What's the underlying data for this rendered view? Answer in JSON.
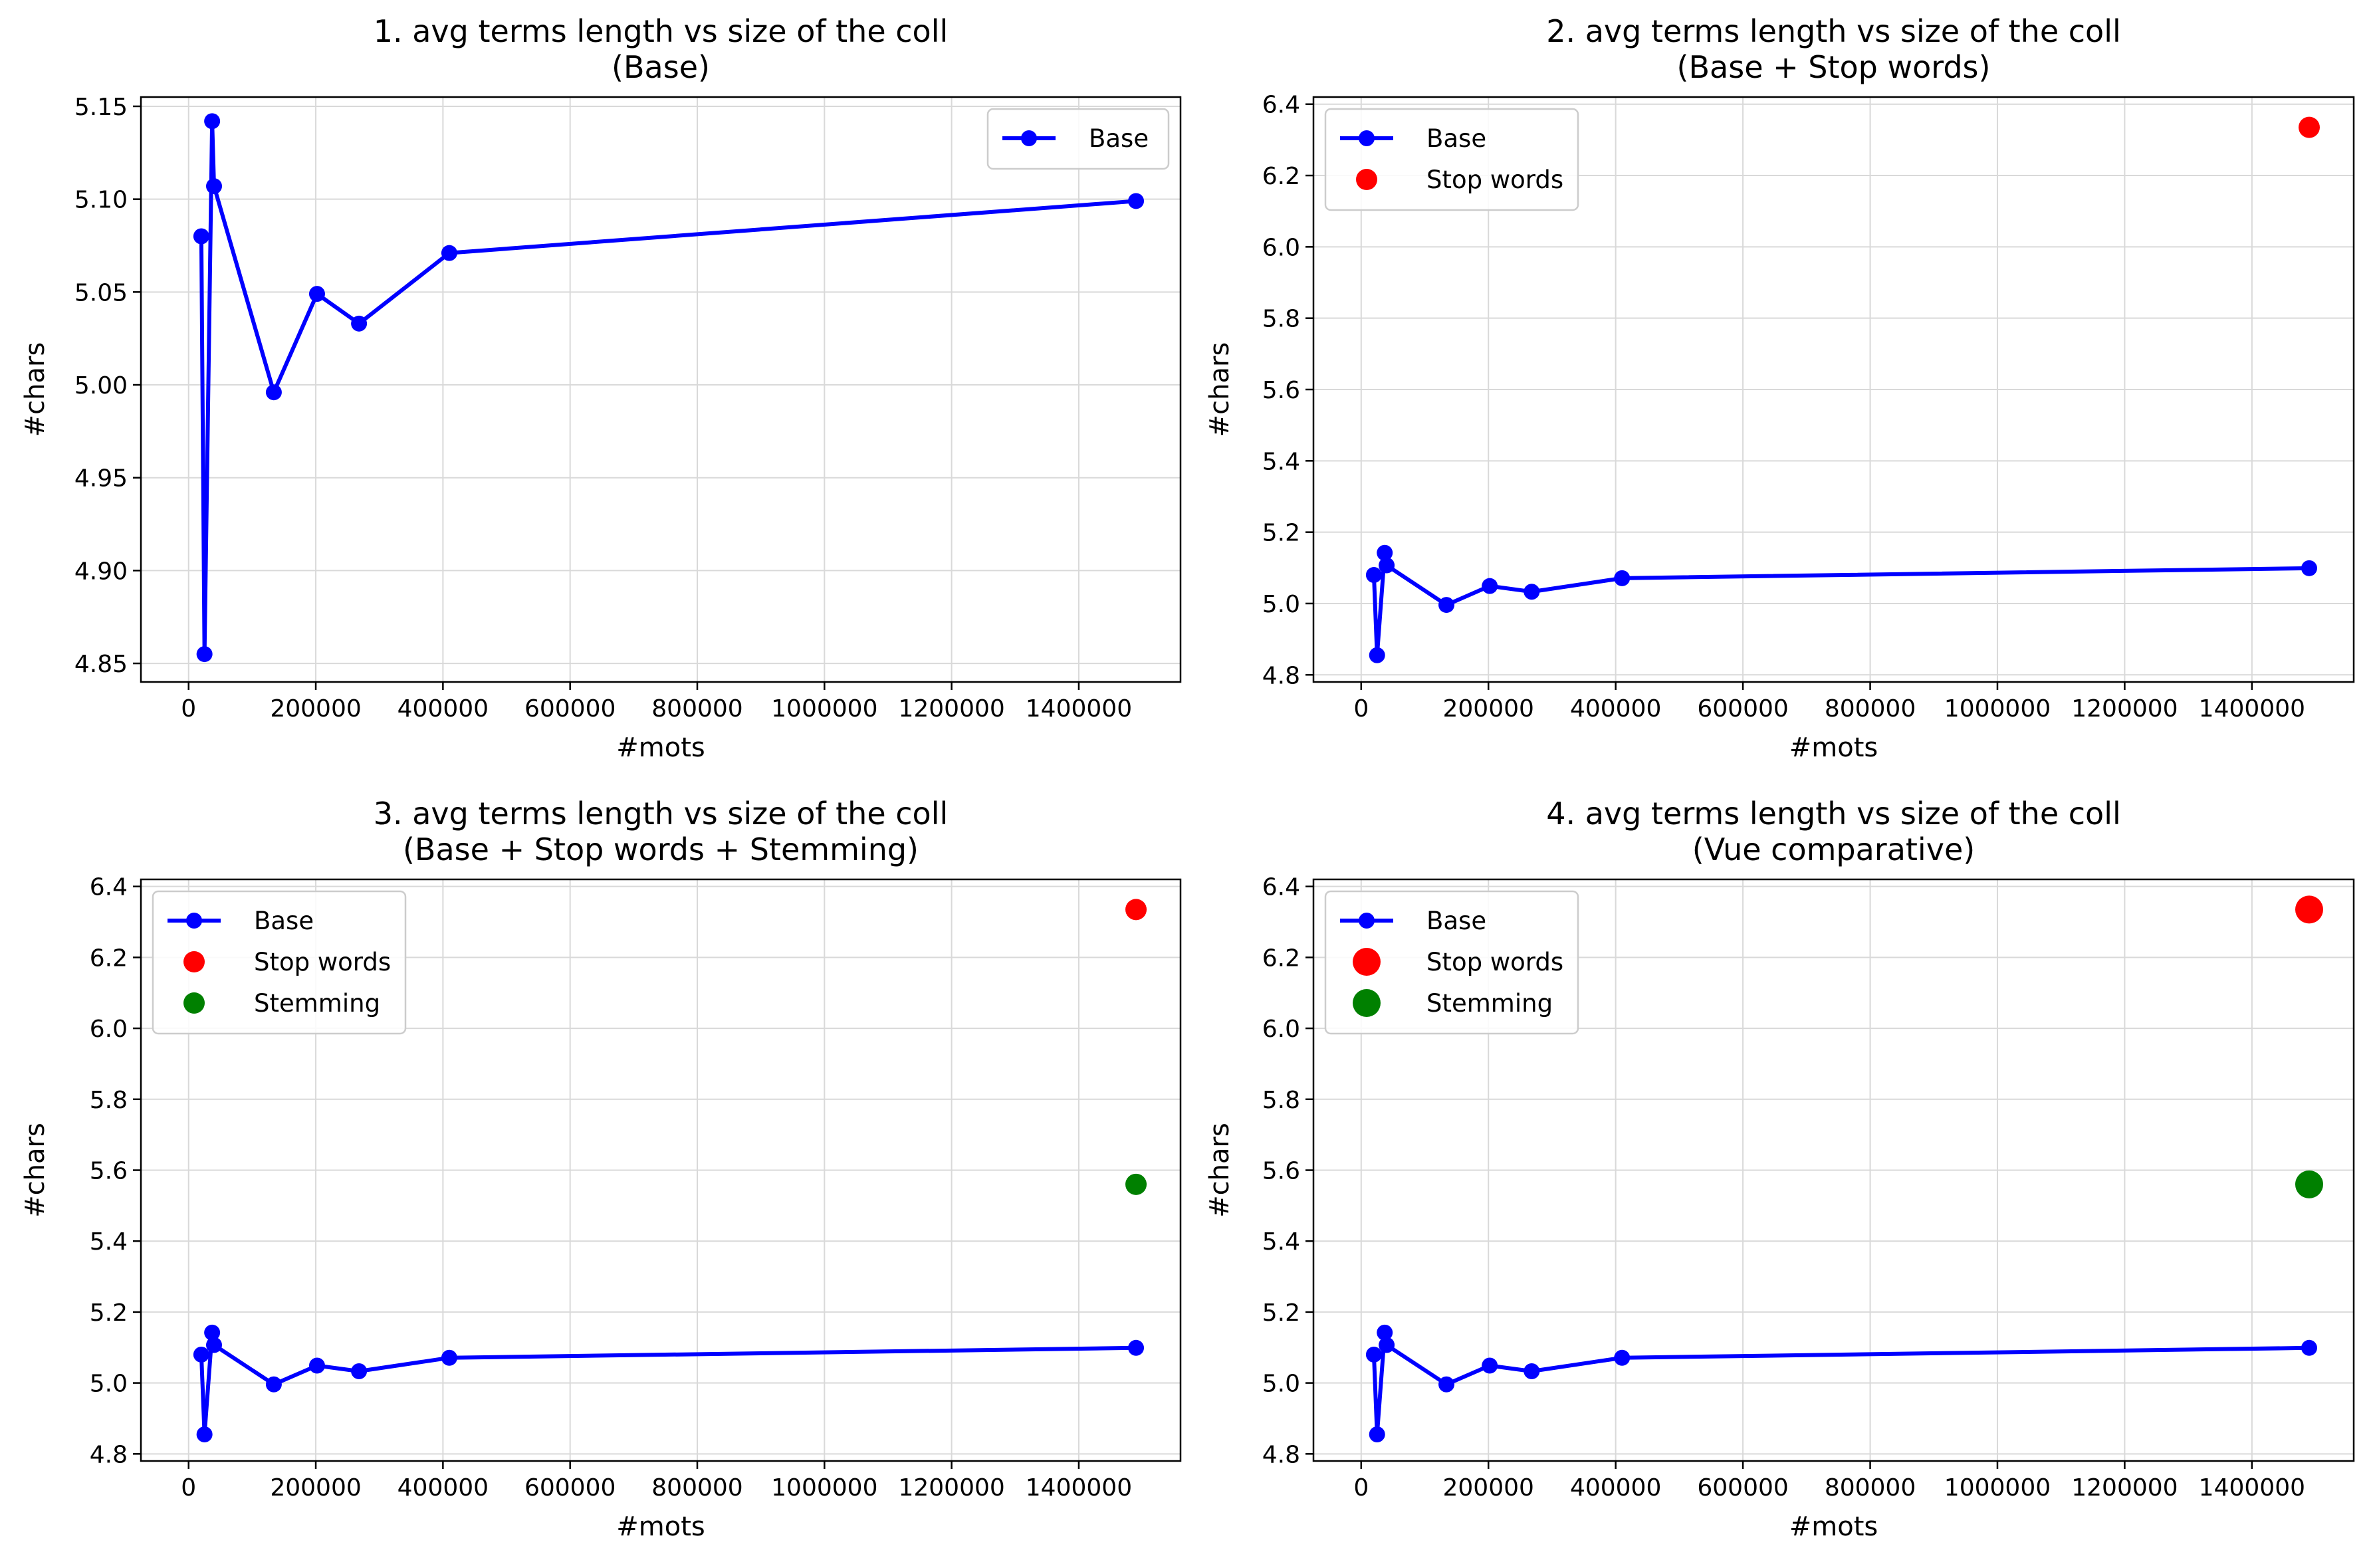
{
  "colors": {
    "base": "#0000ff",
    "stop_words": "#ff0000",
    "stemming": "#008000",
    "grid": "#d9d9d9"
  },
  "chart_data": [
    {
      "type": "line",
      "title": "1. avg terms length vs size of the coll",
      "subtitle": "(Base)",
      "xlabel": "#mots",
      "ylabel": "#chars",
      "xlim": [
        -75000,
        1560000
      ],
      "ylim": [
        4.84,
        5.155
      ],
      "xticks": [
        0,
        200000,
        400000,
        600000,
        800000,
        1000000,
        1200000,
        1400000
      ],
      "xtick_labels": [
        "0",
        "200000",
        "400000",
        "600000",
        "800000",
        "1000000",
        "1200000",
        "1400000"
      ],
      "yticks": [
        4.85,
        4.9,
        4.95,
        5.0,
        5.05,
        5.1,
        5.15
      ],
      "ytick_labels": [
        "4.85",
        "4.90",
        "4.95",
        "5.00",
        "5.05",
        "5.10",
        "5.15"
      ],
      "grid": true,
      "legend_position": "upper right",
      "series": [
        {
          "name": "Base",
          "kind": "line",
          "color": "#0000ff",
          "marker_size": "normal",
          "x": [
            20000,
            25000,
            37000,
            40000,
            134000,
            202000,
            268000,
            410000,
            1490000
          ],
          "y": [
            5.08,
            4.855,
            5.142,
            5.107,
            4.996,
            5.049,
            5.033,
            5.071,
            5.099
          ]
        }
      ]
    },
    {
      "type": "line",
      "title": "2. avg terms length vs size of the coll",
      "subtitle": "(Base + Stop words)",
      "xlabel": "#mots",
      "ylabel": "#chars",
      "xlim": [
        -75000,
        1560000
      ],
      "ylim": [
        4.78,
        6.42
      ],
      "xticks": [
        0,
        200000,
        400000,
        600000,
        800000,
        1000000,
        1200000,
        1400000
      ],
      "xtick_labels": [
        "0",
        "200000",
        "400000",
        "600000",
        "800000",
        "1000000",
        "1200000",
        "1400000"
      ],
      "yticks": [
        4.8,
        5.0,
        5.2,
        5.4,
        5.6,
        5.8,
        6.0,
        6.2,
        6.4
      ],
      "ytick_labels": [
        "4.8",
        "5.0",
        "5.2",
        "5.4",
        "5.6",
        "5.8",
        "6.0",
        "6.2",
        "6.4"
      ],
      "grid": true,
      "legend_position": "upper left",
      "series": [
        {
          "name": "Base",
          "kind": "line",
          "color": "#0000ff",
          "marker_size": "normal",
          "x": [
            20000,
            25000,
            37000,
            40000,
            134000,
            202000,
            268000,
            410000,
            1490000
          ],
          "y": [
            5.08,
            4.855,
            5.142,
            5.107,
            4.996,
            5.049,
            5.033,
            5.071,
            5.099
          ]
        },
        {
          "name": "Stop words",
          "kind": "point",
          "color": "#ff0000",
          "marker_size": "medium",
          "x": [
            1490000
          ],
          "y": [
            6.335
          ]
        }
      ]
    },
    {
      "type": "line",
      "title": "3. avg terms length vs size of the coll",
      "subtitle": "(Base + Stop words + Stemming)",
      "xlabel": "#mots",
      "ylabel": "#chars",
      "xlim": [
        -75000,
        1560000
      ],
      "ylim": [
        4.78,
        6.42
      ],
      "xticks": [
        0,
        200000,
        400000,
        600000,
        800000,
        1000000,
        1200000,
        1400000
      ],
      "xtick_labels": [
        "0",
        "200000",
        "400000",
        "600000",
        "800000",
        "1000000",
        "1200000",
        "1400000"
      ],
      "yticks": [
        4.8,
        5.0,
        5.2,
        5.4,
        5.6,
        5.8,
        6.0,
        6.2,
        6.4
      ],
      "ytick_labels": [
        "4.8",
        "5.0",
        "5.2",
        "5.4",
        "5.6",
        "5.8",
        "6.0",
        "6.2",
        "6.4"
      ],
      "grid": true,
      "legend_position": "upper left",
      "series": [
        {
          "name": "Base",
          "kind": "line",
          "color": "#0000ff",
          "marker_size": "normal",
          "x": [
            20000,
            25000,
            37000,
            40000,
            134000,
            202000,
            268000,
            410000,
            1490000
          ],
          "y": [
            5.08,
            4.855,
            5.142,
            5.107,
            4.996,
            5.049,
            5.033,
            5.071,
            5.099
          ]
        },
        {
          "name": "Stop words",
          "kind": "point",
          "color": "#ff0000",
          "marker_size": "medium",
          "x": [
            1490000
          ],
          "y": [
            6.335
          ]
        },
        {
          "name": "Stemming",
          "kind": "point",
          "color": "#008000",
          "marker_size": "medium",
          "x": [
            1490000
          ],
          "y": [
            5.56
          ]
        }
      ]
    },
    {
      "type": "line",
      "title": "4. avg terms length vs size of the coll",
      "subtitle": "(Vue comparative)",
      "xlabel": "#mots",
      "ylabel": "#chars",
      "xlim": [
        -75000,
        1560000
      ],
      "ylim": [
        4.78,
        6.42
      ],
      "xticks": [
        0,
        200000,
        400000,
        600000,
        800000,
        1000000,
        1200000,
        1400000
      ],
      "xtick_labels": [
        "0",
        "200000",
        "400000",
        "600000",
        "800000",
        "1000000",
        "1200000",
        "1400000"
      ],
      "yticks": [
        4.8,
        5.0,
        5.2,
        5.4,
        5.6,
        5.8,
        6.0,
        6.2,
        6.4
      ],
      "ytick_labels": [
        "4.8",
        "5.0",
        "5.2",
        "5.4",
        "5.6",
        "5.8",
        "6.0",
        "6.2",
        "6.4"
      ],
      "grid": true,
      "legend_position": "upper left",
      "series": [
        {
          "name": "Base",
          "kind": "line",
          "color": "#0000ff",
          "marker_size": "normal",
          "x": [
            20000,
            25000,
            37000,
            40000,
            134000,
            202000,
            268000,
            410000,
            1490000
          ],
          "y": [
            5.08,
            4.855,
            5.142,
            5.107,
            4.996,
            5.049,
            5.033,
            5.071,
            5.099
          ]
        },
        {
          "name": "Stop words",
          "kind": "point",
          "color": "#ff0000",
          "marker_size": "large",
          "x": [
            1490000
          ],
          "y": [
            6.335
          ]
        },
        {
          "name": "Stemming",
          "kind": "point",
          "color": "#008000",
          "marker_size": "large",
          "x": [
            1490000
          ],
          "y": [
            5.56
          ]
        }
      ]
    }
  ]
}
